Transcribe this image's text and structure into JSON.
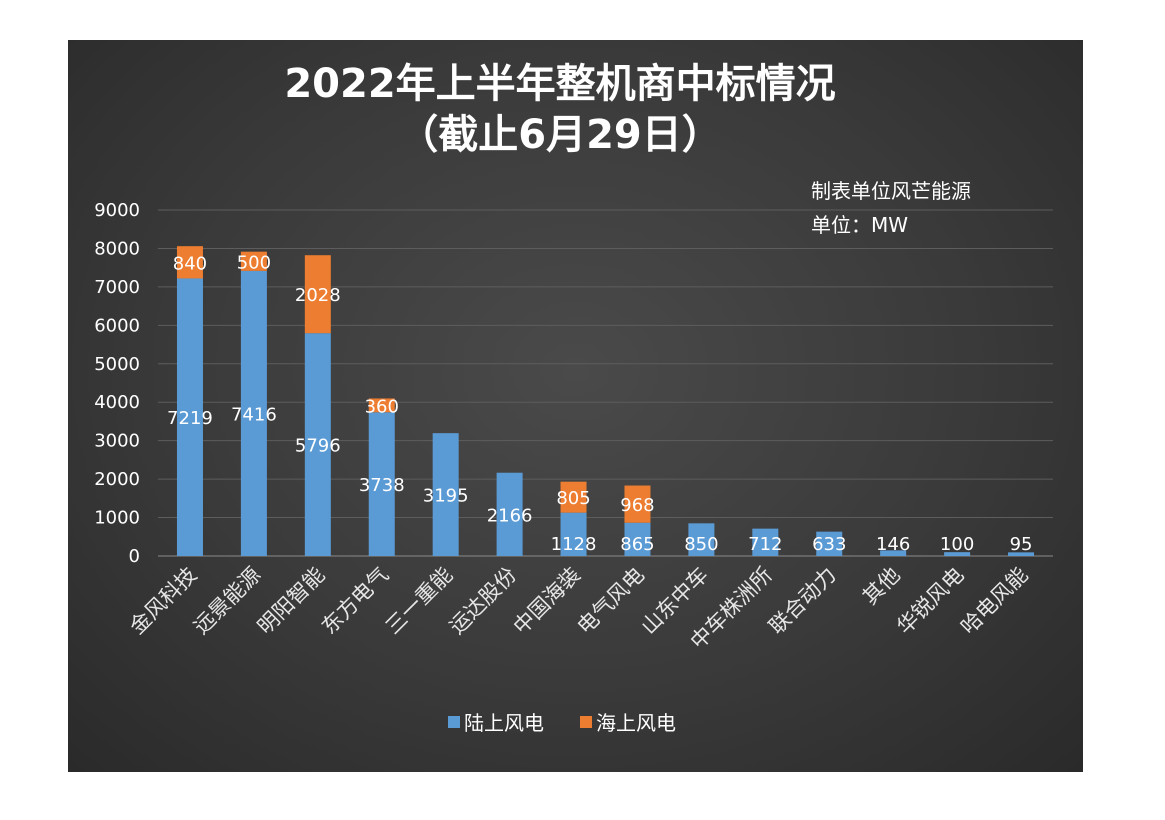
{
  "chart_data": {
    "type": "bar",
    "stacked": true,
    "title": "2022年上半年整机商中标情况",
    "subtitle": "（截止6月29日）",
    "annotations": [
      "制表单位风芒能源",
      "单位：MW"
    ],
    "categories": [
      "金风科技",
      "远景能源",
      "明阳智能",
      "东方电气",
      "三一重能",
      "运达股份",
      "中国海装",
      "电气风电",
      "山东中车",
      "中车株洲所",
      "联合动力",
      "其他",
      "华锐风电",
      "哈电风能"
    ],
    "series": [
      {
        "name": "陆上风电",
        "color": "#5b9bd5",
        "values": [
          7219,
          7416,
          5796,
          3738,
          3195,
          2166,
          1128,
          865,
          850,
          712,
          633,
          146,
          100,
          95
        ]
      },
      {
        "name": "海上风电",
        "color": "#ed7d31",
        "values": [
          840,
          500,
          2028,
          360,
          null,
          null,
          805,
          968,
          null,
          null,
          null,
          null,
          null,
          null
        ]
      }
    ],
    "ylim": [
      0,
      9000
    ],
    "yticks": [
      0,
      1000,
      2000,
      3000,
      4000,
      5000,
      6000,
      7000,
      8000,
      9000
    ],
    "grid": true,
    "legend_position": "bottom"
  }
}
